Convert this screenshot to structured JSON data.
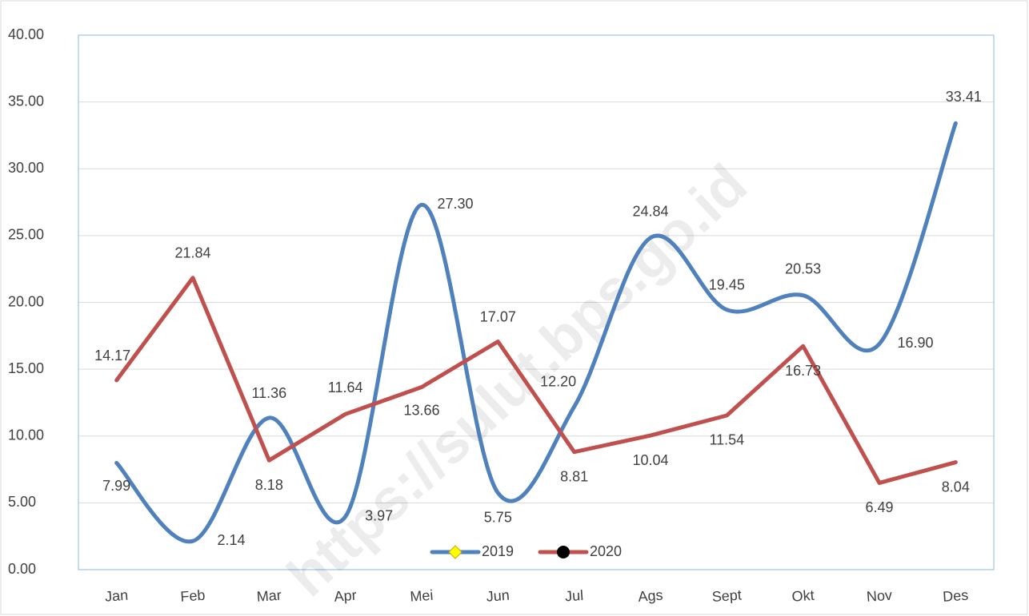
{
  "chart_data": {
    "type": "line",
    "categories": [
      "Jan",
      "Feb",
      "Mar",
      "Apr",
      "Mei",
      "Jun",
      "Jul",
      "Ags",
      "Sept",
      "Okt",
      "Nov",
      "Des"
    ],
    "series": [
      {
        "name": "2019",
        "color": "#4f81bd",
        "marker_color": "#ffff00",
        "smooth": true,
        "values": [
          7.99,
          2.14,
          11.36,
          3.97,
          27.3,
          5.75,
          12.2,
          24.84,
          19.45,
          20.53,
          16.9,
          33.41
        ],
        "value_labels": [
          "7.99",
          "2.14",
          "11.36",
          "3.97",
          "27.30",
          "5.75",
          "12.20",
          "24.84",
          "19.45",
          "20.53",
          "16.90",
          "33.41"
        ]
      },
      {
        "name": "2020",
        "color": "#c0504d",
        "marker_color": "#000000",
        "smooth": false,
        "values": [
          14.17,
          21.84,
          8.18,
          11.64,
          13.66,
          17.07,
          8.81,
          10.04,
          11.54,
          16.73,
          6.49,
          8.04
        ],
        "value_labels": [
          "14.17",
          "21.84",
          "8.18",
          "11.64",
          "13.66",
          "17.07",
          "8.81",
          "10.04",
          "11.54",
          "16.73",
          "6.49",
          "8.04"
        ]
      }
    ],
    "ylim": [
      0,
      40
    ],
    "yticks": [
      {
        "value": 0,
        "label": "0.00"
      },
      {
        "value": 5,
        "label": "5.00"
      },
      {
        "value": 10,
        "label": "10.00"
      },
      {
        "value": 15,
        "label": "15.00"
      },
      {
        "value": 20,
        "label": "20.00"
      },
      {
        "value": 25,
        "label": "25.00"
      },
      {
        "value": 30,
        "label": "30.00"
      },
      {
        "value": 35,
        "label": "35.00"
      },
      {
        "value": 40,
        "label": "40.00"
      }
    ],
    "grid": true,
    "legend": "bottom",
    "watermark": "https://sulut.bps.go.id"
  }
}
